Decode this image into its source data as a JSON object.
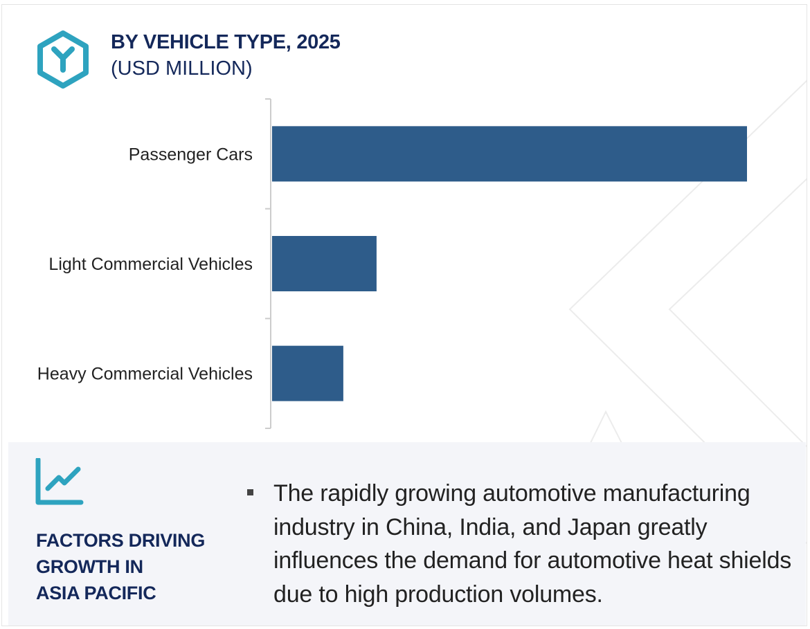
{
  "header": {
    "title": "BY VEHICLE TYPE, 2025",
    "subtitle": "(USD MILLION)",
    "icon": "hexagon-y-icon"
  },
  "chart_data": {
    "type": "bar",
    "orientation": "horizontal",
    "categories": [
      "Passenger Cars",
      "Light Commercial Vehicles",
      "Heavy Commercial Vehicles"
    ],
    "values": [
      100,
      22,
      15
    ],
    "xlim": [
      0,
      100
    ],
    "grid": false,
    "legend": "none",
    "bar_color": "#2e5c8a"
  },
  "factors": {
    "icon": "line-chart-icon",
    "title_lines": [
      "FACTORS DRIVING",
      "GROWTH IN",
      "ASIA PACIFIC"
    ],
    "bullets": [
      "The rapidly growing automotive manufacturing industry in China, India, and Japan greatly influences the demand for automotive heat shields due to high production volumes."
    ]
  },
  "colors": {
    "accent": "#2ea3bf",
    "navy": "#14285a",
    "bar": "#2e5c8a",
    "panel": "#f4f5f9"
  }
}
